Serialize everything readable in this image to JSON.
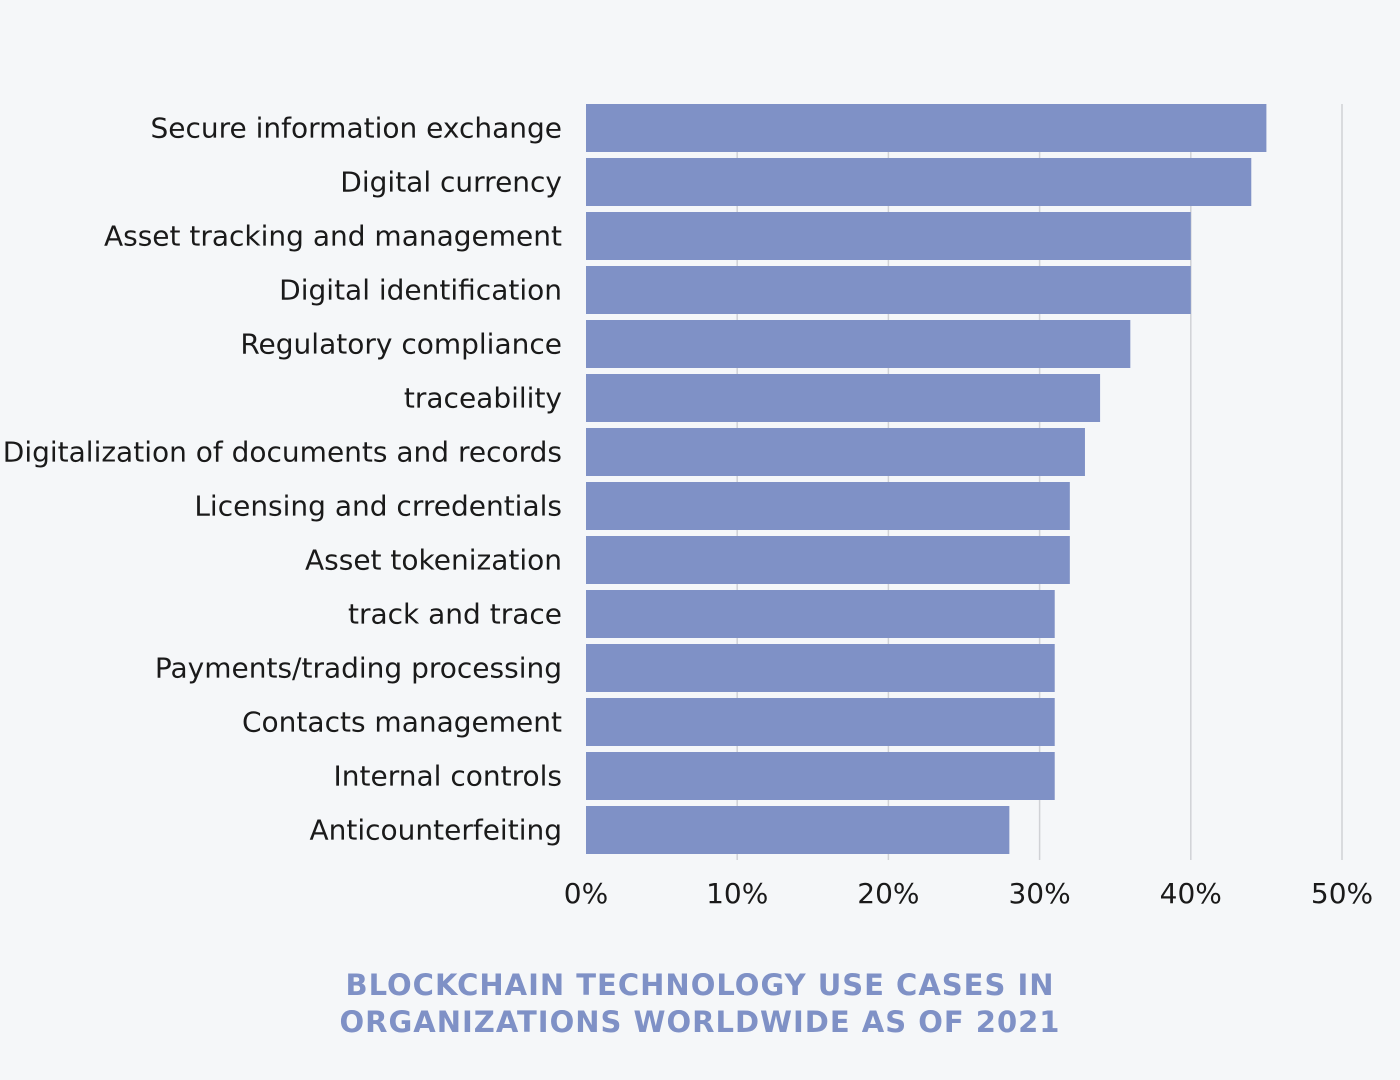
{
  "chart_data": {
    "type": "bar",
    "orientation": "horizontal",
    "title_lines": [
      "BLOCKCHAIN TECHNOLOGY USE CASES IN",
      "ORGANIZATIONS WORLDWIDE AS OF 2021"
    ],
    "categories": [
      "Secure information exchange",
      "Digital currency",
      "Asset tracking and management",
      "Digital identification",
      "Regulatory compliance",
      "traceability",
      "Digitalization of documents and records",
      "Licensing and crredentials",
      "Asset tokenization",
      "track and trace",
      "Payments/trading processing",
      "Contacts management",
      "Internal controls",
      "Anticounterfeiting"
    ],
    "values": [
      45,
      44,
      40,
      40,
      36,
      34,
      33,
      32,
      32,
      31,
      31,
      31,
      31,
      28
    ],
    "xlim": [
      0,
      50
    ],
    "xticks": [
      0,
      10,
      20,
      30,
      40,
      50
    ],
    "xtick_labels": [
      "0%",
      "10%",
      "20%",
      "30%",
      "40%",
      "50%"
    ],
    "grid": true,
    "bar_color": "#7f91c6",
    "title_color": "#7f91c6",
    "background": "#f5f7f9"
  }
}
